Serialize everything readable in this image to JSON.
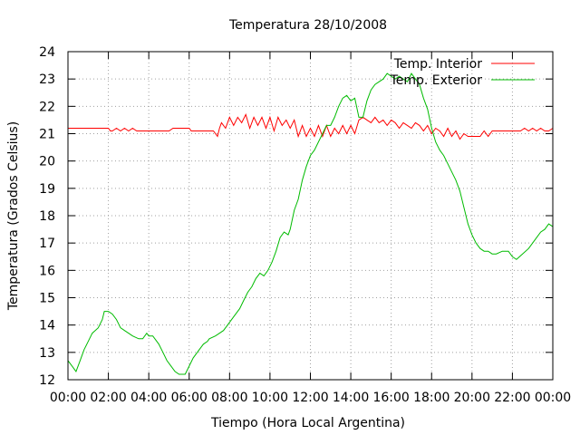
{
  "chart_data": {
    "type": "line",
    "title": "Temperatura 28/10/2008",
    "xlabel": "Tiempo (Hora Local Argentina)",
    "ylabel": "Temperatura (Grados Celsius)",
    "xlim": [
      0,
      24
    ],
    "ylim": [
      12,
      24
    ],
    "x_tick_labels": [
      "00:00",
      "02:00",
      "04:00",
      "06:00",
      "08:00",
      "10:00",
      "12:00",
      "14:00",
      "16:00",
      "18:00",
      "20:00",
      "22:00",
      "00:00"
    ],
    "x_tick_hours": [
      0,
      2,
      4,
      6,
      8,
      10,
      12,
      14,
      16,
      18,
      20,
      22,
      24
    ],
    "y_ticks": [
      12,
      13,
      14,
      15,
      16,
      17,
      18,
      19,
      20,
      21,
      22,
      23,
      24
    ],
    "grid": true,
    "legend_position": "top-right",
    "series": [
      {
        "name": "Temp. Interior",
        "color": "#ff0000",
        "x": [
          0,
          0.5,
          1,
          1.5,
          2,
          2.1,
          2.2,
          2.4,
          2.6,
          2.8,
          3.0,
          3.2,
          3.4,
          3.6,
          3.8,
          4,
          4.5,
          5,
          5.2,
          5.4,
          5.6,
          6,
          6.1,
          6.2,
          6.4,
          6.6,
          6.8,
          7,
          7.2,
          7.4,
          7.5,
          7.6,
          7.8,
          8.0,
          8.2,
          8.4,
          8.6,
          8.8,
          9.0,
          9.2,
          9.4,
          9.6,
          9.8,
          10.0,
          10.2,
          10.4,
          10.6,
          10.8,
          11.0,
          11.2,
          11.4,
          11.6,
          11.8,
          12.0,
          12.2,
          12.4,
          12.6,
          12.8,
          13.0,
          13.2,
          13.4,
          13.6,
          13.8,
          14.0,
          14.2,
          14.4,
          14.6,
          14.8,
          15.0,
          15.2,
          15.4,
          15.6,
          15.8,
          16.0,
          16.2,
          16.4,
          16.6,
          16.8,
          17.0,
          17.2,
          17.4,
          17.6,
          17.8,
          18.0,
          18.2,
          18.4,
          18.6,
          18.8,
          19.0,
          19.2,
          19.4,
          19.6,
          19.8,
          20.0,
          20.2,
          20.4,
          20.6,
          20.8,
          21.0,
          21.5,
          22.0,
          22.4,
          22.6,
          22.8,
          23.0,
          23.2,
          23.4,
          23.6,
          23.8,
          24.0
        ],
        "y": [
          21.2,
          21.2,
          21.2,
          21.2,
          21.2,
          21.1,
          21.1,
          21.2,
          21.1,
          21.2,
          21.1,
          21.2,
          21.1,
          21.1,
          21.1,
          21.1,
          21.1,
          21.1,
          21.2,
          21.2,
          21.2,
          21.2,
          21.1,
          21.1,
          21.1,
          21.1,
          21.1,
          21.1,
          21.1,
          20.9,
          21.2,
          21.4,
          21.2,
          21.6,
          21.3,
          21.6,
          21.4,
          21.7,
          21.2,
          21.6,
          21.3,
          21.6,
          21.2,
          21.6,
          21.1,
          21.6,
          21.3,
          21.5,
          21.2,
          21.5,
          20.9,
          21.3,
          20.9,
          21.2,
          20.9,
          21.3,
          20.9,
          21.3,
          20.9,
          21.2,
          21.0,
          21.3,
          21.0,
          21.3,
          21.0,
          21.5,
          21.6,
          21.5,
          21.4,
          21.6,
          21.4,
          21.5,
          21.3,
          21.5,
          21.4,
          21.2,
          21.4,
          21.3,
          21.2,
          21.4,
          21.3,
          21.1,
          21.3,
          21.0,
          21.2,
          21.1,
          20.9,
          21.2,
          20.9,
          21.1,
          20.8,
          21.0,
          20.9,
          20.9,
          20.9,
          20.9,
          21.1,
          20.9,
          21.1,
          21.1,
          21.1,
          21.1,
          21.2,
          21.1,
          21.2,
          21.1,
          21.2,
          21.1,
          21.1,
          21.2
        ]
      },
      {
        "name": "Temp. Exterior",
        "color": "#00bb00",
        "x": [
          0,
          0.2,
          0.4,
          0.6,
          0.8,
          1.0,
          1.2,
          1.5,
          1.7,
          1.8,
          2.0,
          2.2,
          2.4,
          2.6,
          2.8,
          3.0,
          3.2,
          3.5,
          3.7,
          3.9,
          4.0,
          4.2,
          4.5,
          4.7,
          4.9,
          5.1,
          5.3,
          5.5,
          5.7,
          5.8,
          6.0,
          6.2,
          6.4,
          6.5,
          6.7,
          6.9,
          7.0,
          7.3,
          7.5,
          7.7,
          7.9,
          8.2,
          8.5,
          8.7,
          8.9,
          9.1,
          9.3,
          9.5,
          9.7,
          9.9,
          10.1,
          10.3,
          10.5,
          10.7,
          10.9,
          11.0,
          11.2,
          11.4,
          11.6,
          11.8,
          12.0,
          12.2,
          12.4,
          12.6,
          12.8,
          13.0,
          13.2,
          13.4,
          13.6,
          13.8,
          14.0,
          14.2,
          14.4,
          14.6,
          14.8,
          15.0,
          15.2,
          15.4,
          15.6,
          15.8,
          16.0,
          16.2,
          16.4,
          16.6,
          16.8,
          17.0,
          17.2,
          17.4,
          17.6,
          17.8,
          18.0,
          18.2,
          18.4,
          18.6,
          18.8,
          19.0,
          19.2,
          19.4,
          19.6,
          19.8,
          20.0,
          20.2,
          20.4,
          20.6,
          20.8,
          21.0,
          21.2,
          21.5,
          21.8,
          22.0,
          22.2,
          22.5,
          22.8,
          23.0,
          23.2,
          23.4,
          23.6,
          23.8,
          24.0
        ],
        "y": [
          12.7,
          12.5,
          12.3,
          12.7,
          13.1,
          13.4,
          13.7,
          13.9,
          14.2,
          14.5,
          14.5,
          14.4,
          14.2,
          13.9,
          13.8,
          13.7,
          13.6,
          13.5,
          13.5,
          13.7,
          13.6,
          13.6,
          13.3,
          13.0,
          12.7,
          12.5,
          12.3,
          12.2,
          12.2,
          12.2,
          12.5,
          12.8,
          13.0,
          13.1,
          13.3,
          13.4,
          13.5,
          13.6,
          13.7,
          13.8,
          14.0,
          14.3,
          14.6,
          14.9,
          15.2,
          15.4,
          15.7,
          15.9,
          15.8,
          16.0,
          16.3,
          16.7,
          17.2,
          17.4,
          17.3,
          17.5,
          18.2,
          18.6,
          19.3,
          19.8,
          20.2,
          20.4,
          20.7,
          21.0,
          21.3,
          21.3,
          21.6,
          22.0,
          22.3,
          22.4,
          22.2,
          22.3,
          21.6,
          21.6,
          22.2,
          22.6,
          22.8,
          22.9,
          23.0,
          23.2,
          23.1,
          23.0,
          23.1,
          23.0,
          22.9,
          23.2,
          23.0,
          22.8,
          22.3,
          21.9,
          21.2,
          20.7,
          20.4,
          20.2,
          19.9,
          19.6,
          19.3,
          18.9,
          18.3,
          17.7,
          17.3,
          17.0,
          16.8,
          16.7,
          16.7,
          16.6,
          16.6,
          16.7,
          16.7,
          16.5,
          16.4,
          16.6,
          16.8,
          17.0,
          17.2,
          17.4,
          17.5,
          17.7,
          17.6
        ]
      }
    ]
  }
}
